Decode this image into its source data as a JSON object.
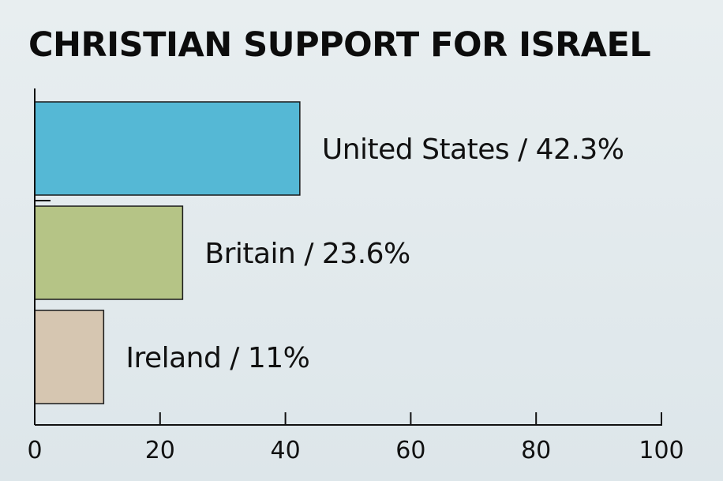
{
  "chart_data": {
    "type": "bar",
    "orientation": "horizontal",
    "title": "CHRISTIAN SUPPORT FOR ISRAEL",
    "categories": [
      "United States",
      "Britain",
      "Ireland"
    ],
    "values": [
      42.3,
      23.6,
      11
    ],
    "labels": [
      "United States / 42.3%",
      "Britain / 23.6%",
      "Ireland / 11%"
    ],
    "colors": [
      "#55b8d5",
      "#b5c486",
      "#d6c6b1"
    ],
    "xlim": [
      0,
      100
    ],
    "xticks": [
      0,
      20,
      40,
      60,
      80,
      100
    ],
    "xtick_labels": [
      "0",
      "20",
      "40",
      "60",
      "80",
      "100"
    ],
    "grid": false
  }
}
